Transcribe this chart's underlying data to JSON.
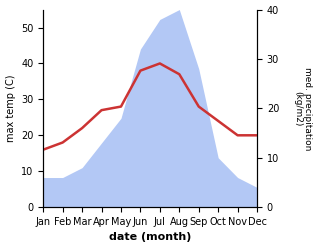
{
  "months": [
    "Jan",
    "Feb",
    "Mar",
    "Apr",
    "May",
    "Jun",
    "Jul",
    "Aug",
    "Sep",
    "Oct",
    "Nov",
    "Dec"
  ],
  "temperature": [
    16,
    18,
    22,
    27,
    28,
    38,
    40,
    37,
    28,
    24,
    20,
    20
  ],
  "precipitation": [
    6,
    6,
    8,
    13,
    18,
    32,
    38,
    40,
    28,
    10,
    6,
    4
  ],
  "temp_ylim": [
    0,
    55
  ],
  "precip_ylim": [
    0,
    40
  ],
  "temp_color": "#cc3333",
  "fill_color": "#b3c8f5",
  "xlabel": "date (month)",
  "ylabel_left": "max temp (C)",
  "ylabel_right": "med. precipitation\n(kg/m2)",
  "left_yticks": [
    0,
    10,
    20,
    30,
    40,
    50
  ],
  "right_yticks": [
    0,
    10,
    20,
    30,
    40
  ],
  "temp_linewidth": 1.8
}
